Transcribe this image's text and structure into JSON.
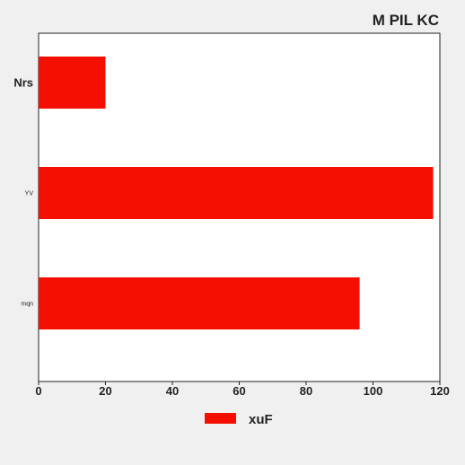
{
  "chart_data": {
    "type": "bar",
    "orientation": "horizontal",
    "title": "M PIL KC",
    "categories": [
      "Nrs",
      "YV",
      "mqn"
    ],
    "series": [
      {
        "name": "xuF",
        "values": [
          20,
          118,
          96
        ],
        "color": "#f50f00"
      }
    ],
    "xlim": [
      0,
      120
    ],
    "x_ticks": [
      0,
      20,
      40,
      60,
      80,
      100,
      120
    ],
    "xlabel": "",
    "ylabel": "",
    "grid": false,
    "legend": "bottom-center"
  }
}
